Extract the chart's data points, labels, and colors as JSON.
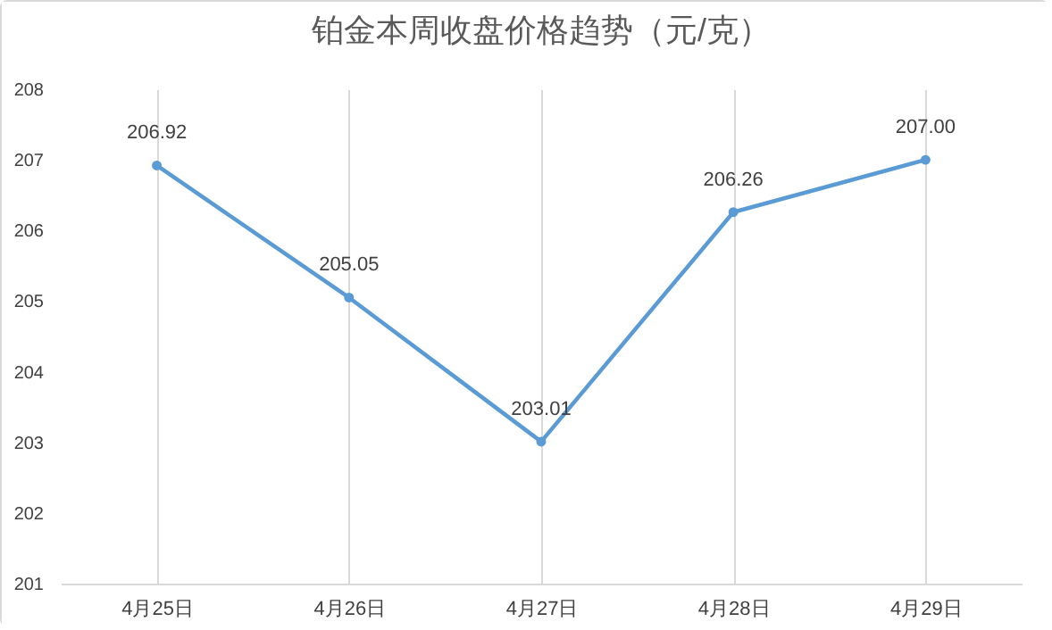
{
  "chart_data": {
    "type": "line",
    "title": "铂金本周收盘价格趋势（元/克）",
    "categories": [
      "4月25日",
      "4月26日",
      "4月27日",
      "4月28日",
      "4月29日"
    ],
    "series": [
      {
        "color": "#5b9bd5",
        "values": [
          206.92,
          205.05,
          203.01,
          206.26,
          207.0
        ],
        "value_labels": [
          "206.92",
          "205.05",
          "203.01",
          "206.26",
          "207.00"
        ]
      }
    ],
    "ylim": [
      201,
      208
    ],
    "yticks": [
      201,
      202,
      203,
      204,
      205,
      206,
      207,
      208
    ],
    "grid": "x",
    "marker": "circle",
    "line_style": "solid",
    "legend": false
  }
}
